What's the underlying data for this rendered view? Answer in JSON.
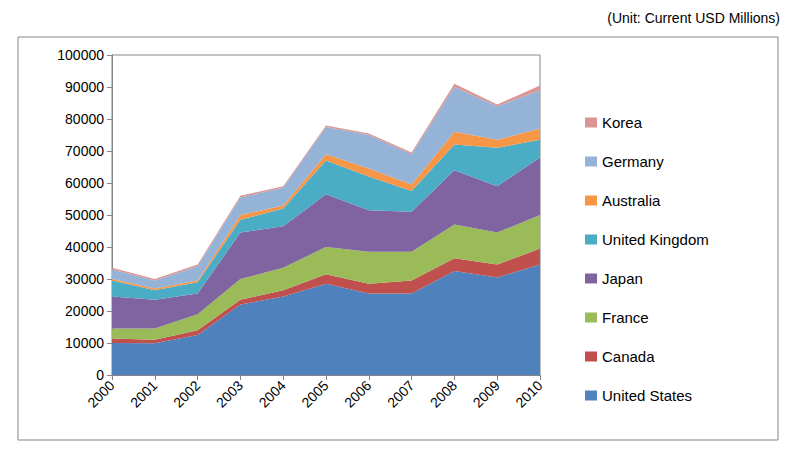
{
  "chart_data": {
    "type": "area",
    "subtitle": "(Unit: Current USD Millions)",
    "stacked": true,
    "grid": false,
    "legend": "right",
    "categories": [
      "2000",
      "2001",
      "2002",
      "2003",
      "2004",
      "2005",
      "2006",
      "2007",
      "2008",
      "2009",
      "2010"
    ],
    "ylim": [
      0,
      100000
    ],
    "yticks": [
      0,
      10000,
      20000,
      30000,
      40000,
      50000,
      60000,
      70000,
      80000,
      90000,
      100000
    ],
    "series": [
      {
        "name": "United States",
        "color": "#4f81bd",
        "values": [
          10000,
          9900,
          12500,
          22000,
          24500,
          28500,
          25500,
          25500,
          32500,
          30500,
          34500
        ]
      },
      {
        "name": "Canada",
        "color": "#c0504d",
        "values": [
          1400,
          1100,
          1500,
          1500,
          2000,
          3000,
          3000,
          4000,
          4000,
          4000,
          5000
        ]
      },
      {
        "name": "France",
        "color": "#9bbb59",
        "values": [
          3100,
          3500,
          5000,
          6500,
          7000,
          8500,
          10000,
          9000,
          10500,
          10000,
          10500
        ]
      },
      {
        "name": "Japan",
        "color": "#8064a2",
        "values": [
          10000,
          9000,
          6500,
          14500,
          13000,
          16500,
          13000,
          12500,
          17000,
          14500,
          18000
        ]
      },
      {
        "name": "United Kingdom",
        "color": "#4bacc6",
        "values": [
          5000,
          3000,
          3500,
          4000,
          5500,
          10500,
          10500,
          6500,
          8000,
          12000,
          5500
        ]
      },
      {
        "name": "Australia",
        "color": "#f79646",
        "values": [
          500,
          500,
          500,
          1500,
          1000,
          2000,
          2500,
          2000,
          4000,
          2500,
          3500
        ]
      },
      {
        "name": "Germany",
        "color": "#95b3d7",
        "values": [
          3000,
          2500,
          4500,
          5500,
          5500,
          8500,
          10500,
          9500,
          14000,
          10500,
          12000
        ]
      },
      {
        "name": "Korea",
        "color": "#d99694",
        "values": [
          500,
          500,
          500,
          500,
          500,
          500,
          500,
          500,
          1000,
          500,
          1500
        ]
      }
    ]
  }
}
